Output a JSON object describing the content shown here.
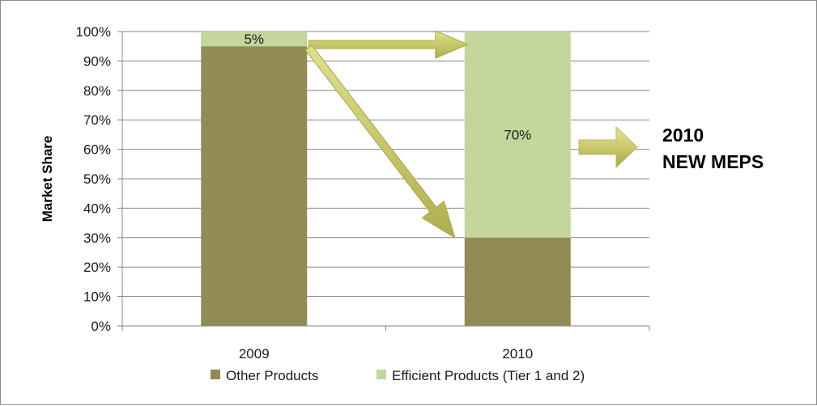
{
  "chart_data": {
    "type": "bar",
    "stacked": true,
    "categories": [
      "2009",
      "2010"
    ],
    "series": [
      {
        "name": "Other Products",
        "values": [
          95,
          30
        ],
        "color": "#948a54"
      },
      {
        "name": "Efficient Products (Tier 1 and 2)",
        "values": [
          5,
          70
        ],
        "color": "#c3d69b"
      }
    ],
    "data_labels": [
      {
        "series": 1,
        "category": 0,
        "text": "5%"
      },
      {
        "series": 1,
        "category": 1,
        "text": "70%"
      }
    ],
    "title": "",
    "xlabel": "",
    "ylabel": "Market Share",
    "ylim": [
      0,
      100
    ],
    "yticks": [
      0,
      10,
      20,
      30,
      40,
      50,
      60,
      70,
      80,
      90,
      100
    ],
    "ytick_labels": [
      "0%",
      "10%",
      "20%",
      "30%",
      "40%",
      "50%",
      "60%",
      "70%",
      "80%",
      "90%",
      "100%"
    ],
    "grid": true,
    "legend_position": "bottom",
    "arrow_color": "#c8c86a",
    "annotation": {
      "line1": "2010",
      "line2": "NEW MEPS"
    }
  }
}
